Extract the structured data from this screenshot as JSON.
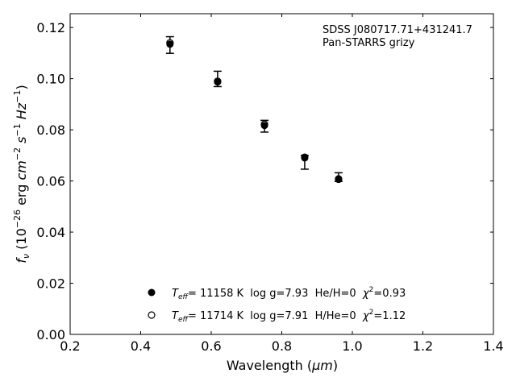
{
  "chart_data": {
    "type": "scatter",
    "xlabel_main": "Wavelength (",
    "xlabel_unit": "μm",
    "xlabel_close": ")",
    "ylabel": "f_ν (10^-26 erg cm^-2 s^-1 Hz^-1)",
    "ylabel_parts": {
      "f": "f",
      "nu": "ν",
      "open": " (10",
      "e1": "−26",
      "erg": " erg ",
      "cm": "cm",
      "e2": "−2",
      "s": " s",
      "e3": "−1",
      "hz": " Hz",
      "e4": "−1",
      "close": ")"
    },
    "xlim": [
      0.2,
      1.4
    ],
    "ylim": [
      0.0,
      0.1254
    ],
    "xticks": [
      "0.2",
      "0.4",
      "0.6",
      "0.8",
      "1.0",
      "1.2",
      "1.4"
    ],
    "yticks": [
      "0.00",
      "0.02",
      "0.04",
      "0.06",
      "0.08",
      "0.10",
      "0.12"
    ],
    "annotation": [
      "SDSS J080717.71+431241.7",
      "Pan-STARRS grizy"
    ],
    "observed": {
      "x": [
        0.483,
        0.618,
        0.751,
        0.865,
        0.961
      ],
      "y": [
        0.1135,
        0.0987,
        0.0817,
        0.069,
        0.0606
      ],
      "err_low": [
        0.1099,
        0.0969,
        0.0791,
        0.0646,
        0.0598
      ],
      "err_high": [
        0.1164,
        0.1029,
        0.0837,
        0.07,
        0.0632
      ]
    },
    "series": [
      {
        "name": "Teff= 11158 K  log g=7.93  He/H=0  χ2=0.93",
        "marker": "filled",
        "legend": {
          "T": "T",
          "eff": "eff",
          "rest": "= 11158 K  log g=7.93  He/H=0  ",
          "chi": "χ",
          "sq": "2",
          "val": "=0.93"
        },
        "x": [
          0.483,
          0.618,
          0.751,
          0.865,
          0.961
        ],
        "y": [
          0.1135,
          0.0987,
          0.0817,
          0.069,
          0.0606
        ]
      },
      {
        "name": "Teff= 11714 K  log g=7.91  H/He=0  χ2=1.12",
        "marker": "open",
        "legend": {
          "T": "T",
          "eff": "eff",
          "rest": "= 11714 K  log g=7.91  H/He=0  ",
          "chi": "χ",
          "sq": "2",
          "val": "=1.12"
        },
        "x": [
          0.483,
          0.618,
          0.751,
          0.865,
          0.961
        ],
        "y": [
          0.114,
          0.099,
          0.0822,
          0.0693,
          0.0608
        ]
      }
    ],
    "legend_position": "lower-center",
    "grid": false
  }
}
